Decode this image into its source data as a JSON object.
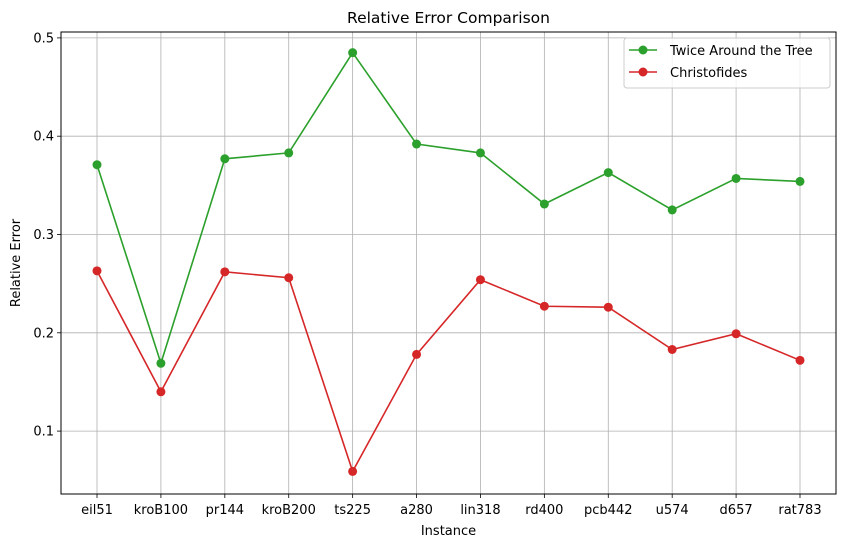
{
  "chart_data": {
    "type": "line",
    "title": "Relative Error Comparison",
    "xlabel": "Instance",
    "ylabel": "Relative Error",
    "categories": [
      "eil51",
      "kroB100",
      "pr144",
      "kroB200",
      "ts225",
      "a280",
      "lin318",
      "rd400",
      "pcb442",
      "u574",
      "d657",
      "rat783"
    ],
    "ylim": [
      0.036,
      0.506
    ],
    "yticks": [
      0.1,
      0.2,
      0.3,
      0.4,
      0.5
    ],
    "ytick_labels": [
      "0.1",
      "0.2",
      "0.3",
      "0.4",
      "0.5"
    ],
    "grid": true,
    "legend_position": "top-right",
    "series": [
      {
        "name": "Twice Around the Tree",
        "color": "#2ca02c",
        "marker": "circle",
        "values": [
          0.371,
          0.169,
          0.377,
          0.383,
          0.485,
          0.392,
          0.383,
          0.331,
          0.363,
          0.325,
          0.357,
          0.354
        ]
      },
      {
        "name": "Christofides",
        "color": "#d62728",
        "marker": "circle",
        "values": [
          0.263,
          0.14,
          0.262,
          0.256,
          0.059,
          0.178,
          0.254,
          0.227,
          0.226,
          0.183,
          0.199,
          0.172
        ]
      }
    ]
  }
}
